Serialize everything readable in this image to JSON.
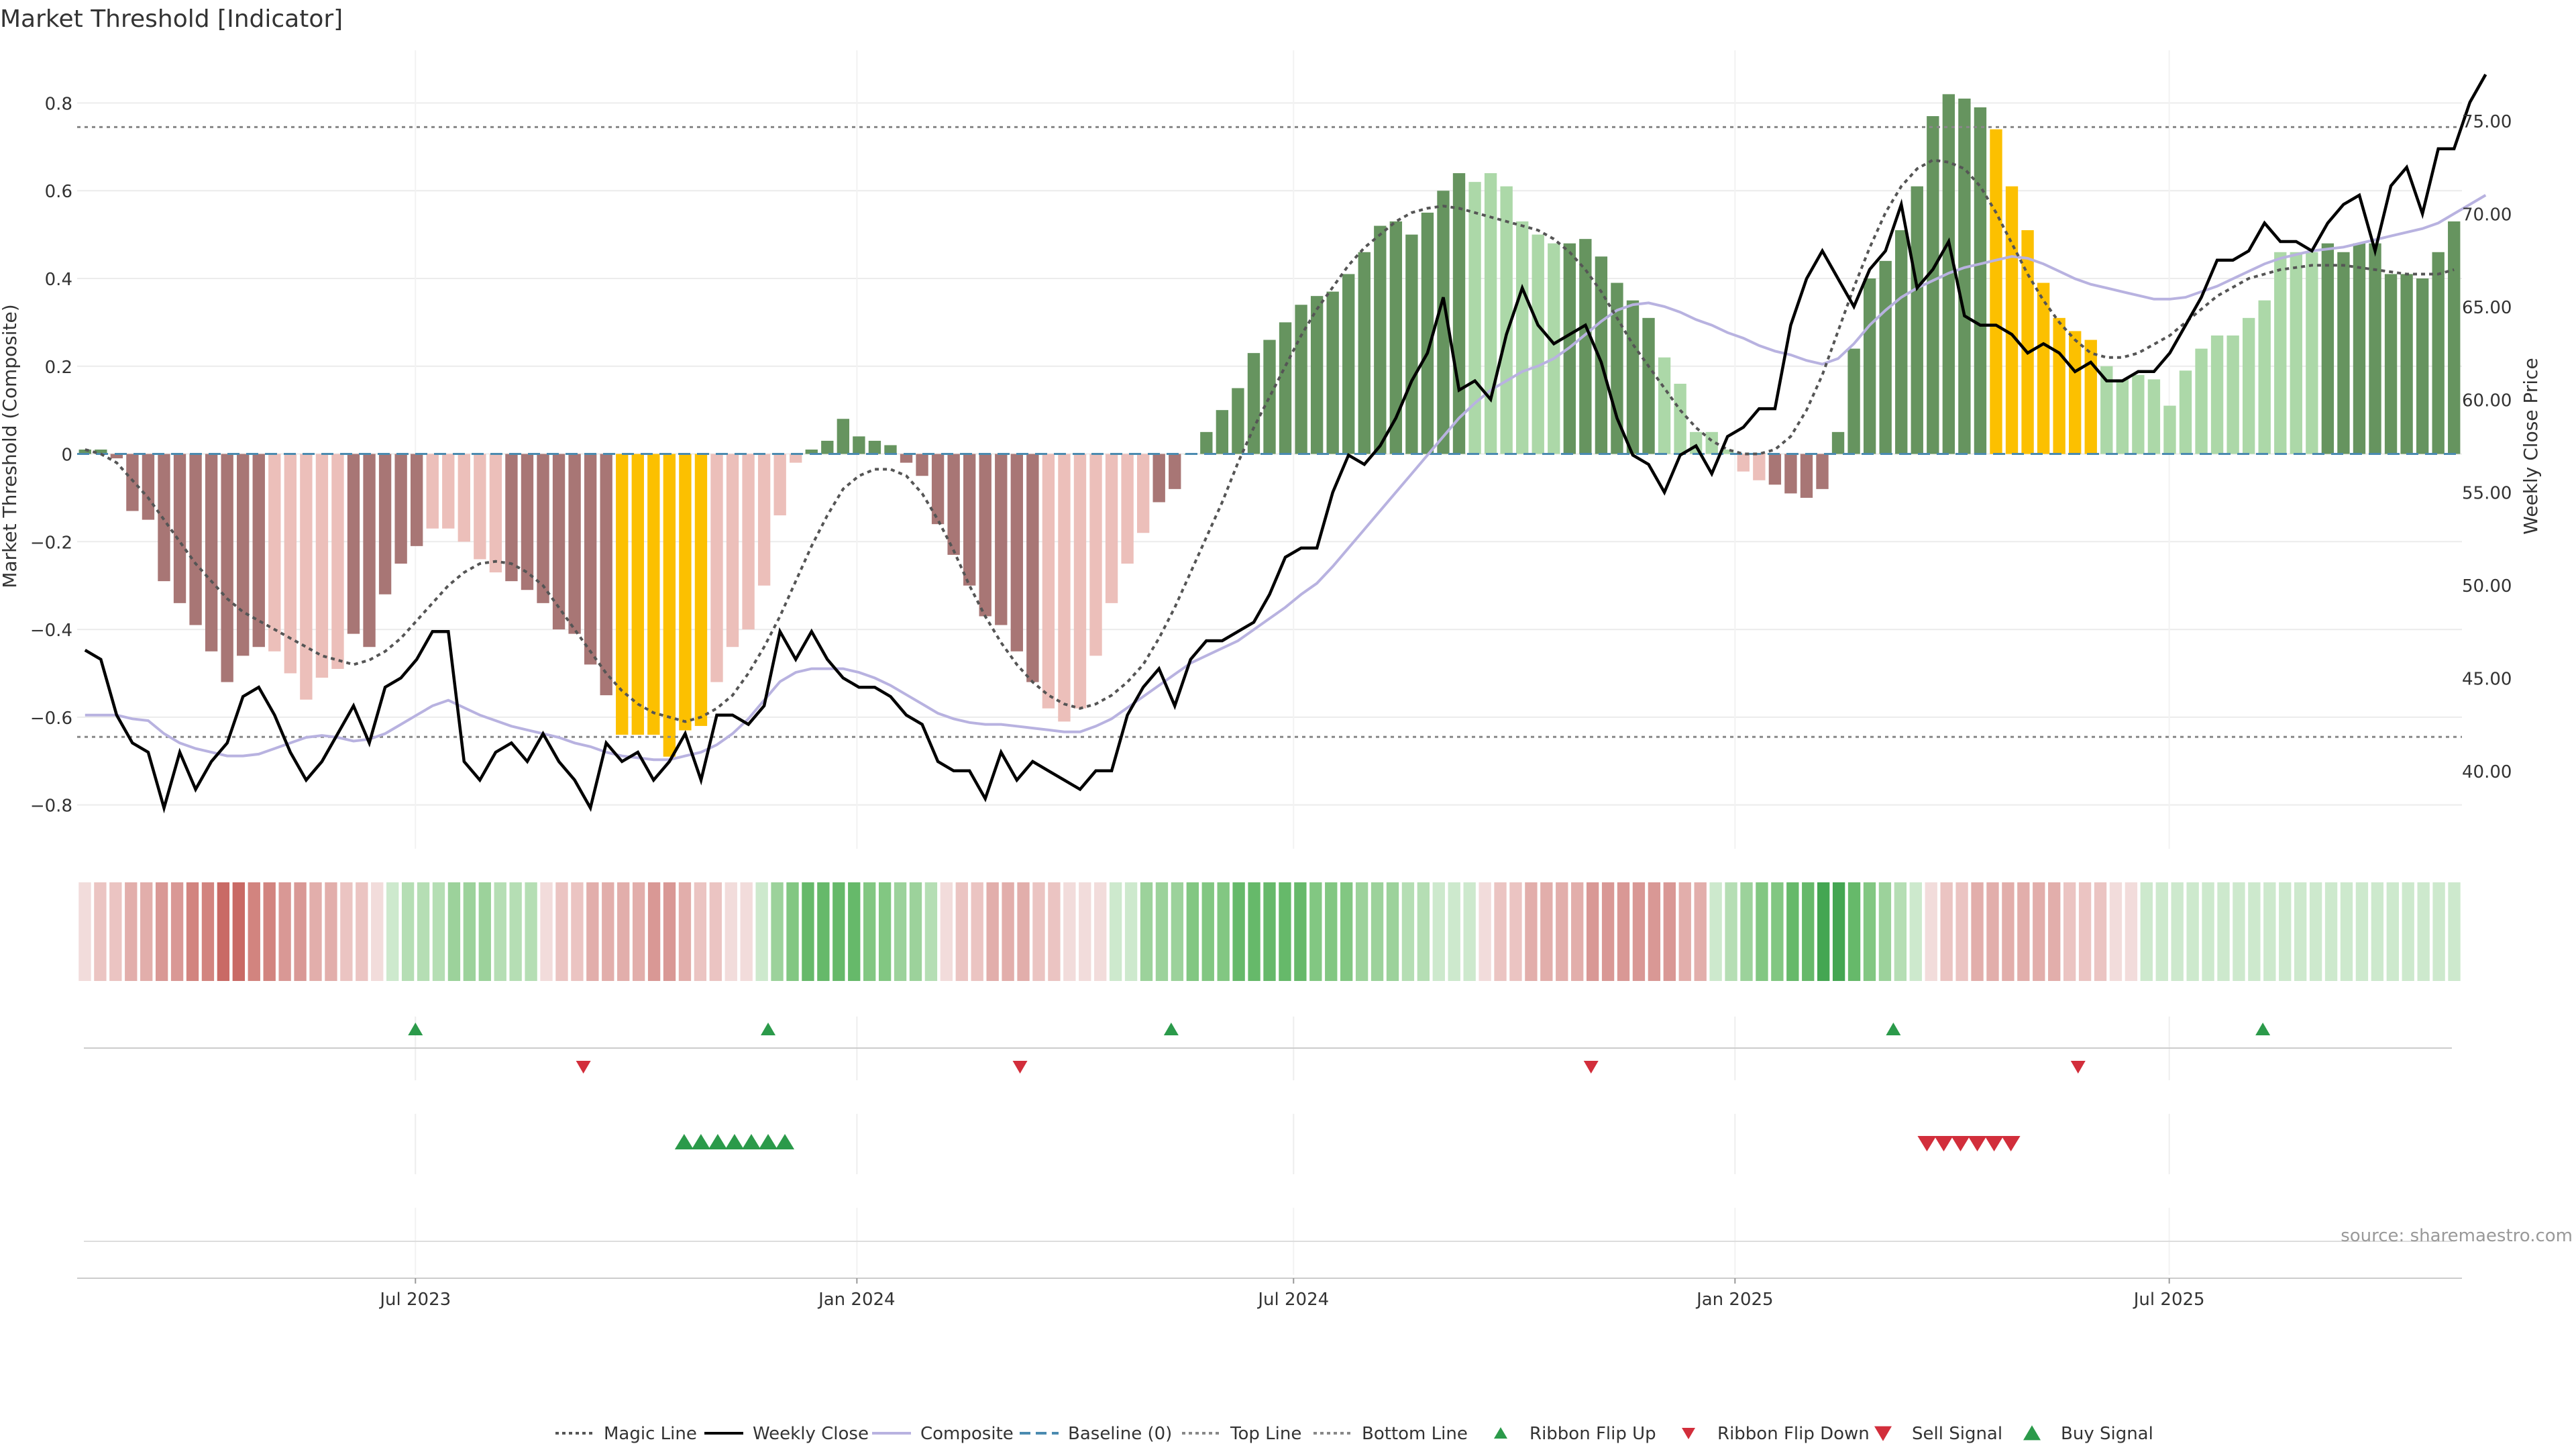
{
  "title": "Market Threshold [Indicator]",
  "source_note": "source: sharemaestro.com",
  "colors": {
    "strong_red": "#a87675",
    "light_red": "#ecbfba",
    "strong_green": "#66945f",
    "light_green": "#acd8a8",
    "extreme": "#fcc000",
    "weekly_close": "#000000",
    "composite": "#b8b2e0",
    "magic": "#555555",
    "baseline": "#4b8bb0",
    "threshold_line": "#888888",
    "buy": "#2b9a4a",
    "sell": "#d22e3b"
  },
  "chart_data": [
    {
      "type": "bar",
      "ylabel": "Market Threshold (Composite)",
      "y2label": "Weekly Close Price",
      "ylim": [
        -0.9,
        0.92
      ],
      "y2lim": [
        35.8,
        78.8
      ],
      "yticks": [
        "0.8",
        "0.6",
        "0.4",
        "0.2",
        "0",
        "−0.2",
        "−0.4",
        "−0.6",
        "−0.8"
      ],
      "yticks_values": [
        0.8,
        0.6,
        0.4,
        0.2,
        0,
        -0.2,
        -0.4,
        -0.6,
        -0.8
      ],
      "y2ticks": [
        "75.00",
        "70.00",
        "65.00",
        "60.00",
        "55.00",
        "50.00",
        "45.00",
        "40.00"
      ],
      "y2ticks_values": [
        75,
        70,
        65,
        60,
        55,
        50,
        45,
        40
      ],
      "x_start": "2023-02-10",
      "x_end": "2025-10-31",
      "xticks": [
        {
          "date": "2023-07-01",
          "label": "Jul 2023"
        },
        {
          "date": "2024-01-01",
          "label": "Jan 2024"
        },
        {
          "date": "2024-07-01",
          "label": "Jul 2024"
        },
        {
          "date": "2025-01-01",
          "label": "Jan 2025"
        },
        {
          "date": "2025-07-01",
          "label": "Jul 2025"
        }
      ],
      "top_line": 0.745,
      "bottom_line": -0.645,
      "bars_composite": [
        0.01,
        0.01,
        -0.01,
        -0.13,
        -0.15,
        -0.29,
        -0.34,
        -0.39,
        -0.45,
        -0.52,
        -0.46,
        -0.44,
        -0.45,
        -0.5,
        -0.56,
        -0.51,
        -0.49,
        -0.41,
        -0.44,
        -0.32,
        -0.25,
        -0.21,
        -0.17,
        -0.17,
        -0.2,
        -0.24,
        -0.27,
        -0.29,
        -0.31,
        -0.34,
        -0.4,
        -0.41,
        -0.48,
        -0.55,
        -0.64,
        -0.64,
        -0.64,
        -0.69,
        -0.63,
        -0.62,
        -0.52,
        -0.44,
        -0.4,
        -0.3,
        -0.14,
        -0.02,
        0.01,
        0.03,
        0.08,
        0.04,
        0.03,
        0.02,
        -0.02,
        -0.05,
        -0.16,
        -0.23,
        -0.3,
        -0.37,
        -0.39,
        -0.45,
        -0.52,
        -0.58,
        -0.61,
        -0.58,
        -0.46,
        -0.34,
        -0.25,
        -0.18,
        -0.11,
        -0.08,
        0.0,
        0.05,
        0.1,
        0.15,
        0.23,
        0.26,
        0.3,
        0.34,
        0.36,
        0.37,
        0.41,
        0.46,
        0.52,
        0.53,
        0.5,
        0.55,
        0.6,
        0.64,
        0.62,
        0.64,
        0.61,
        0.53,
        0.5,
        0.48,
        0.48,
        0.49,
        0.45,
        0.39,
        0.35,
        0.31,
        0.22,
        0.16,
        0.05,
        0.05,
        0.01,
        -0.04,
        -0.06,
        -0.07,
        -0.09,
        -0.1,
        -0.08,
        0.05,
        0.24,
        0.4,
        0.44,
        0.51,
        0.61,
        0.77,
        0.82,
        0.81,
        0.79,
        0.74,
        0.61,
        0.51,
        0.39,
        0.31,
        0.28,
        0.26,
        0.2,
        0.17,
        0.18,
        0.17,
        0.11,
        0.19,
        0.24,
        0.27,
        0.27,
        0.31,
        0.35,
        0.46,
        0.46,
        0.46,
        0.48,
        0.46,
        0.48,
        0.48,
        0.41,
        0.41,
        0.4,
        0.46,
        0.53
      ],
      "bar_tone": "sssssssssssslllllssssslllllssssssseeeeeellllllssssssssssssssslllllllssssssssssssssssssssllllllsssssslllllllsssssssssssssseeeeeeellllllllllllllsssssssssssslllllsssss",
      "weekly_close": [
        46.5,
        46.0,
        43.0,
        41.5,
        41.0,
        38.0,
        41.0,
        39.0,
        40.5,
        41.5,
        44.0,
        44.5,
        43.0,
        41.0,
        39.5,
        40.5,
        42.0,
        43.5,
        41.5,
        44.5,
        45.0,
        46.0,
        47.5,
        47.5,
        40.5,
        39.5,
        41.0,
        41.5,
        40.5,
        42.0,
        40.5,
        39.5,
        38.0,
        41.5,
        40.5,
        41.0,
        39.5,
        40.5,
        42.0,
        39.5,
        43.0,
        43.0,
        42.5,
        43.5,
        47.5,
        46.0,
        47.5,
        46.0,
        45.0,
        44.5,
        44.5,
        44.0,
        43.0,
        42.5,
        40.5,
        40.0,
        40.0,
        38.5,
        41.0,
        39.5,
        40.5,
        40.0,
        39.5,
        39.0,
        40.0,
        40.0,
        43.0,
        44.5,
        45.5,
        43.5,
        46.0,
        47.0,
        47.0,
        47.5,
        48.0,
        49.5,
        51.5,
        52.0,
        52.0,
        55.0,
        57.0,
        56.5,
        57.5,
        59.0,
        61.0,
        62.5,
        65.5,
        60.5,
        61.0,
        60.0,
        63.5,
        66.0,
        64.0,
        63.0,
        63.5,
        64.0,
        62.0,
        59.0,
        57.0,
        56.5,
        55.0,
        57.0,
        57.5,
        56.0,
        58.0,
        58.5,
        59.5,
        59.5,
        64.0,
        66.5,
        68.0,
        66.5,
        65.0,
        67.0,
        68.0,
        70.5,
        66.0,
        67.0,
        68.5,
        64.5,
        64.0,
        64.0,
        63.5,
        62.5,
        63.0,
        62.5,
        61.5,
        62.0,
        61.0,
        61.0,
        61.5,
        61.5,
        62.5,
        64.0,
        65.5,
        67.5,
        67.5,
        68.0,
        69.5,
        68.5,
        68.5,
        68.0,
        69.5,
        70.5,
        71.0,
        68.0,
        71.5,
        72.5,
        70.0,
        73.5,
        73.5,
        76.0,
        77.5
      ],
      "composite_line": [
        43.0,
        43.0,
        43.0,
        42.8,
        42.7,
        42.0,
        41.5,
        41.2,
        41.0,
        40.8,
        40.8,
        40.9,
        41.2,
        41.5,
        41.8,
        41.9,
        41.8,
        41.6,
        41.7,
        42.0,
        42.5,
        43.0,
        43.5,
        43.8,
        43.4,
        43.0,
        42.7,
        42.4,
        42.2,
        42.0,
        41.8,
        41.5,
        41.3,
        41.0,
        40.8,
        40.7,
        40.6,
        40.6,
        40.8,
        41.0,
        41.4,
        42.0,
        42.8,
        43.8,
        44.8,
        45.3,
        45.5,
        45.5,
        45.5,
        45.3,
        45.0,
        44.6,
        44.1,
        43.6,
        43.1,
        42.8,
        42.6,
        42.5,
        42.5,
        42.4,
        42.3,
        42.2,
        42.1,
        42.1,
        42.4,
        42.8,
        43.4,
        44.0,
        44.6,
        45.2,
        45.8,
        46.2,
        46.6,
        47.0,
        47.6,
        48.2,
        48.8,
        49.5,
        50.1,
        51.0,
        52.0,
        53.0,
        54.0,
        55.0,
        56.0,
        57.0,
        58.0,
        59.0,
        59.8,
        60.5,
        61.0,
        61.5,
        61.8,
        62.2,
        62.8,
        63.5,
        64.2,
        64.8,
        65.1,
        65.2,
        65.0,
        64.7,
        64.3,
        64.0,
        63.6,
        63.3,
        62.9,
        62.6,
        62.4,
        62.1,
        61.9,
        62.2,
        63.0,
        64.0,
        64.8,
        65.5,
        66.0,
        66.4,
        66.8,
        67.1,
        67.3,
        67.5,
        67.7,
        67.6,
        67.3,
        66.9,
        66.5,
        66.2,
        66.0,
        65.8,
        65.6,
        65.4,
        65.4,
        65.5,
        65.8,
        66.1,
        66.5,
        66.9,
        67.3,
        67.6,
        67.8,
        68.0,
        68.1,
        68.2,
        68.4,
        68.6,
        68.8,
        69.0,
        69.2,
        69.5,
        70.0,
        70.5,
        71.0
      ],
      "magic_line": [
        0.01,
        0.0,
        -0.02,
        -0.06,
        -0.1,
        -0.15,
        -0.2,
        -0.25,
        -0.29,
        -0.33,
        -0.36,
        -0.38,
        -0.4,
        -0.42,
        -0.44,
        -0.46,
        -0.47,
        -0.48,
        -0.47,
        -0.45,
        -0.42,
        -0.38,
        -0.34,
        -0.3,
        -0.27,
        -0.25,
        -0.245,
        -0.25,
        -0.27,
        -0.3,
        -0.35,
        -0.4,
        -0.45,
        -0.5,
        -0.54,
        -0.57,
        -0.59,
        -0.6,
        -0.61,
        -0.6,
        -0.58,
        -0.55,
        -0.5,
        -0.44,
        -0.37,
        -0.29,
        -0.21,
        -0.14,
        -0.08,
        -0.05,
        -0.035,
        -0.035,
        -0.05,
        -0.09,
        -0.15,
        -0.22,
        -0.3,
        -0.37,
        -0.43,
        -0.48,
        -0.52,
        -0.55,
        -0.57,
        -0.58,
        -0.57,
        -0.55,
        -0.52,
        -0.48,
        -0.42,
        -0.35,
        -0.27,
        -0.19,
        -0.11,
        -0.02,
        0.06,
        0.13,
        0.2,
        0.27,
        0.33,
        0.38,
        0.43,
        0.47,
        0.5,
        0.53,
        0.55,
        0.56,
        0.565,
        0.56,
        0.55,
        0.54,
        0.53,
        0.52,
        0.51,
        0.49,
        0.46,
        0.42,
        0.37,
        0.31,
        0.25,
        0.2,
        0.15,
        0.1,
        0.06,
        0.03,
        0.01,
        0.0,
        0.0,
        0.01,
        0.04,
        0.1,
        0.18,
        0.28,
        0.38,
        0.47,
        0.55,
        0.61,
        0.65,
        0.67,
        0.665,
        0.65,
        0.61,
        0.55,
        0.48,
        0.41,
        0.35,
        0.3,
        0.26,
        0.23,
        0.22,
        0.22,
        0.23,
        0.25,
        0.27,
        0.3,
        0.33,
        0.36,
        0.38,
        0.4,
        0.41,
        0.42,
        0.425,
        0.43,
        0.43,
        0.43,
        0.425,
        0.42,
        0.415,
        0.41,
        0.41,
        0.41,
        0.42
      ]
    },
    {
      "type": "heatmap",
      "description_cells": "ribbon",
      "ribbon_levels": [
        -1,
        -2,
        -2,
        -3,
        -3,
        -4,
        -4,
        -5,
        -5,
        -6,
        -6,
        -5,
        -5,
        -4,
        -4,
        -3,
        -3,
        -2,
        -2,
        -1,
        1,
        2,
        2,
        2,
        3,
        3,
        3,
        2,
        2,
        2,
        -1,
        -2,
        -2,
        -3,
        -3,
        -3,
        -3,
        -4,
        -4,
        -3,
        -2,
        -2,
        -1,
        -1,
        1,
        3,
        4,
        5,
        5,
        5,
        5,
        4,
        4,
        3,
        3,
        2,
        -1,
        -2,
        -2,
        -3,
        -3,
        -3,
        -2,
        -2,
        -1,
        -1,
        -1,
        1,
        1,
        3,
        3,
        3,
        4,
        4,
        4,
        5,
        5,
        5,
        5,
        5,
        4,
        4,
        4,
        3,
        3,
        3,
        2,
        2,
        1,
        1,
        1,
        -1,
        -2,
        -2,
        -3,
        -3,
        -3,
        -3,
        -4,
        -4,
        -4,
        -4,
        -4,
        -4,
        -3,
        -3,
        1,
        2,
        3,
        4,
        4,
        5,
        5,
        6,
        6,
        5,
        4,
        3,
        2,
        1,
        -1,
        -2,
        -2,
        -3,
        -3,
        -3,
        -3,
        -3,
        -3,
        -2,
        -2,
        -2,
        -1,
        -1,
        1,
        1,
        1,
        1,
        1,
        1,
        1,
        1,
        1,
        1,
        1,
        1,
        1,
        1,
        1,
        1,
        1,
        1,
        1,
        1,
        1
      ]
    },
    {
      "type": "scatter",
      "ribbon_flip_up": [
        "2023-07-01",
        "2023-11-25",
        "2024-05-11",
        "2025-03-08",
        "2025-08-09"
      ],
      "ribbon_flip_down": [
        "2023-09-09",
        "2024-03-09",
        "2024-11-02",
        "2025-05-24"
      ],
      "buy_signal": [
        "2023-10-21",
        "2023-10-28",
        "2023-11-04",
        "2023-11-11",
        "2023-11-18",
        "2023-11-25",
        "2023-12-02"
      ],
      "sell_signal": [
        "2025-03-22",
        "2025-03-29",
        "2025-04-05",
        "2025-04-12",
        "2025-04-19",
        "2025-04-26"
      ]
    }
  ],
  "legend": [
    {
      "label": "Magic Line",
      "kind": "dotted",
      "color": "#555555"
    },
    {
      "label": "Weekly Close",
      "kind": "solid",
      "color": "#000000"
    },
    {
      "label": "Composite",
      "kind": "solid",
      "color": "#b8b2e0"
    },
    {
      "label": "Baseline (0)",
      "kind": "dashed",
      "color": "#4b8bb0"
    },
    {
      "label": "Top Line",
      "kind": "dotted",
      "color": "#888888"
    },
    {
      "label": "Bottom Line",
      "kind": "dotted",
      "color": "#888888"
    },
    {
      "label": "Ribbon Flip Up",
      "kind": "tri-up",
      "color": "#2b9a4a"
    },
    {
      "label": "Ribbon Flip Down",
      "kind": "tri-down",
      "color": "#d22e3b"
    },
    {
      "label": "Sell Signal",
      "kind": "tri-down-big",
      "color": "#d22e3b"
    },
    {
      "label": "Buy Signal",
      "kind": "tri-up-big",
      "color": "#2b9a4a"
    }
  ]
}
